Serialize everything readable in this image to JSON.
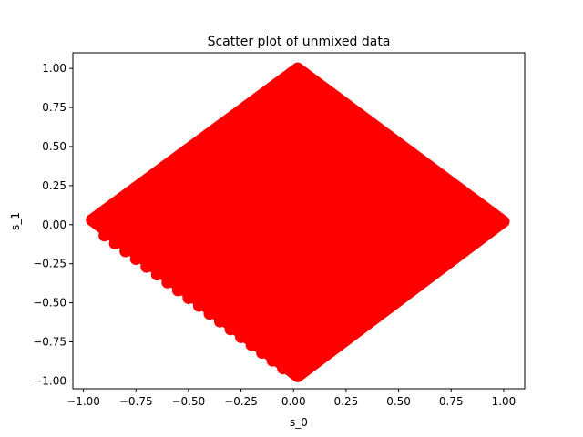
{
  "chart_data": {
    "type": "scatter",
    "title": "Scatter plot of unmixed data",
    "xlabel": "s_0",
    "ylabel": "s_1",
    "xlim": [
      -1.05,
      1.1
    ],
    "ylim": [
      -1.05,
      1.1
    ],
    "xticks": [
      -1.0,
      -0.75,
      -0.5,
      -0.25,
      0.0,
      0.25,
      0.5,
      0.75,
      1.0
    ],
    "xtick_labels": [
      "−1.00",
      "−0.75",
      "−0.50",
      "−0.25",
      "0.00",
      "0.25",
      "0.50",
      "0.75",
      "1.00"
    ],
    "yticks": [
      -1.0,
      -0.75,
      -0.5,
      -0.25,
      0.0,
      0.25,
      0.5,
      0.75,
      1.0
    ],
    "ytick_labels": [
      "−1.00",
      "−0.75",
      "−0.50",
      "−0.25",
      "0.00",
      "0.25",
      "0.50",
      "0.75",
      "1.00"
    ],
    "grid": false,
    "marker_color": "#ff0000",
    "series": [
      {
        "points": [
          [
            -0.96,
            0.03
          ],
          [
            0.02,
            1.0
          ],
          [
            1.0,
            0.02
          ],
          [
            0.02,
            -0.97
          ],
          [
            -0.94,
            0.01
          ],
          [
            -0.9,
            0.07
          ],
          [
            -0.85,
            0.12
          ],
          [
            -0.8,
            0.17
          ],
          [
            -0.75,
            0.22
          ],
          [
            -0.7,
            0.27
          ],
          [
            -0.65,
            0.32
          ],
          [
            -0.6,
            0.37
          ],
          [
            -0.55,
            0.42
          ],
          [
            -0.5,
            0.47
          ],
          [
            -0.45,
            0.52
          ],
          [
            -0.4,
            0.57
          ],
          [
            -0.35,
            0.62
          ],
          [
            -0.3,
            0.67
          ],
          [
            -0.25,
            0.72
          ],
          [
            -0.2,
            0.77
          ],
          [
            -0.15,
            0.82
          ],
          [
            -0.1,
            0.87
          ],
          [
            -0.05,
            0.92
          ],
          [
            0.0,
            0.97
          ],
          [
            0.05,
            0.97
          ],
          [
            0.1,
            0.92
          ],
          [
            0.15,
            0.87
          ],
          [
            0.2,
            0.82
          ],
          [
            0.25,
            0.77
          ],
          [
            0.3,
            0.72
          ],
          [
            0.35,
            0.67
          ],
          [
            0.4,
            0.62
          ],
          [
            0.45,
            0.57
          ],
          [
            0.5,
            0.52
          ],
          [
            0.55,
            0.47
          ],
          [
            0.6,
            0.42
          ],
          [
            0.65,
            0.37
          ],
          [
            0.7,
            0.32
          ],
          [
            0.75,
            0.27
          ],
          [
            0.8,
            0.22
          ],
          [
            0.85,
            0.17
          ],
          [
            0.9,
            0.12
          ],
          [
            0.95,
            0.07
          ],
          [
            0.95,
            -0.03
          ],
          [
            0.9,
            -0.08
          ],
          [
            0.85,
            -0.13
          ],
          [
            0.8,
            -0.18
          ],
          [
            0.75,
            -0.23
          ],
          [
            0.7,
            -0.28
          ],
          [
            0.65,
            -0.33
          ],
          [
            0.6,
            -0.38
          ],
          [
            0.55,
            -0.43
          ],
          [
            0.5,
            -0.48
          ],
          [
            0.45,
            -0.53
          ],
          [
            0.4,
            -0.58
          ],
          [
            0.35,
            -0.63
          ],
          [
            0.3,
            -0.68
          ],
          [
            0.25,
            -0.73
          ],
          [
            0.2,
            -0.78
          ],
          [
            0.15,
            -0.83
          ],
          [
            0.1,
            -0.88
          ],
          [
            0.05,
            -0.93
          ],
          [
            -0.05,
            -0.92
          ],
          [
            -0.1,
            -0.87
          ],
          [
            -0.15,
            -0.82
          ],
          [
            -0.2,
            -0.77
          ],
          [
            -0.25,
            -0.72
          ],
          [
            -0.3,
            -0.67
          ],
          [
            -0.35,
            -0.62
          ],
          [
            -0.4,
            -0.57
          ],
          [
            -0.45,
            -0.52
          ],
          [
            -0.5,
            -0.47
          ],
          [
            -0.55,
            -0.42
          ],
          [
            -0.6,
            -0.37
          ],
          [
            -0.65,
            -0.32
          ],
          [
            -0.7,
            -0.27
          ],
          [
            -0.75,
            -0.22
          ],
          [
            -0.8,
            -0.17
          ],
          [
            -0.85,
            -0.12
          ],
          [
            -0.9,
            -0.07
          ]
        ]
      }
    ]
  }
}
